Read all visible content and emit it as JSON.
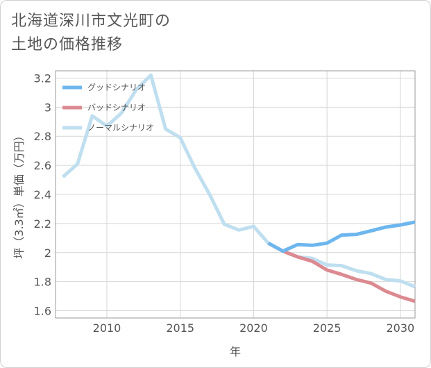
{
  "title": {
    "line1": "北海道深川市文光町の",
    "line2": "土地の価格推移"
  },
  "colors": {
    "good": "#6db6ee",
    "bad": "#dc8a91",
    "normal": "#bfdff0",
    "grid": "#d6d6d6",
    "frame": "#999999",
    "text": "#555555"
  },
  "chart_data": {
    "type": "line",
    "xlabel": "年",
    "ylabel": "坪（3.3㎡）単価（万円）",
    "xlim": [
      2006.5,
      2031
    ],
    "ylim": [
      1.55,
      3.25
    ],
    "x_ticks": [
      2010,
      2015,
      2020,
      2025,
      2030
    ],
    "y_ticks": [
      1.6,
      1.8,
      2,
      2.2,
      2.4,
      2.6,
      2.8,
      3,
      3.2
    ],
    "grid": true,
    "legend_position": "top-left",
    "series": [
      {
        "name": "グッドシナリオ",
        "color_key": "good",
        "x": [
          2021,
          2022,
          2023,
          2024,
          2025,
          2026,
          2027,
          2028,
          2029,
          2030,
          2031
        ],
        "values": [
          2.065,
          2.01,
          2.055,
          2.05,
          2.065,
          2.12,
          2.125,
          2.15,
          2.175,
          2.19,
          2.21
        ]
      },
      {
        "name": "バッドシナリオ",
        "color_key": "bad",
        "x": [
          2021,
          2022,
          2023,
          2024,
          2025,
          2026,
          2027,
          2028,
          2029,
          2030,
          2031
        ],
        "values": [
          2.065,
          2.01,
          1.97,
          1.94,
          1.88,
          1.85,
          1.815,
          1.79,
          1.735,
          1.695,
          1.665
        ]
      },
      {
        "name": "ノーマルシナリオ",
        "color_key": "normal",
        "x": [
          2007,
          2008,
          2009,
          2010,
          2011,
          2012,
          2013,
          2014,
          2015,
          2016,
          2017,
          2018,
          2019,
          2020,
          2021,
          2022,
          2023,
          2024,
          2025,
          2026,
          2027,
          2028,
          2029,
          2030,
          2031
        ],
        "values": [
          2.52,
          2.61,
          2.94,
          2.87,
          2.96,
          3.12,
          3.22,
          2.85,
          2.79,
          2.58,
          2.4,
          2.195,
          2.155,
          2.18,
          2.065,
          2.01,
          1.97,
          1.96,
          1.915,
          1.91,
          1.875,
          1.855,
          1.815,
          1.805,
          1.765
        ]
      }
    ]
  }
}
